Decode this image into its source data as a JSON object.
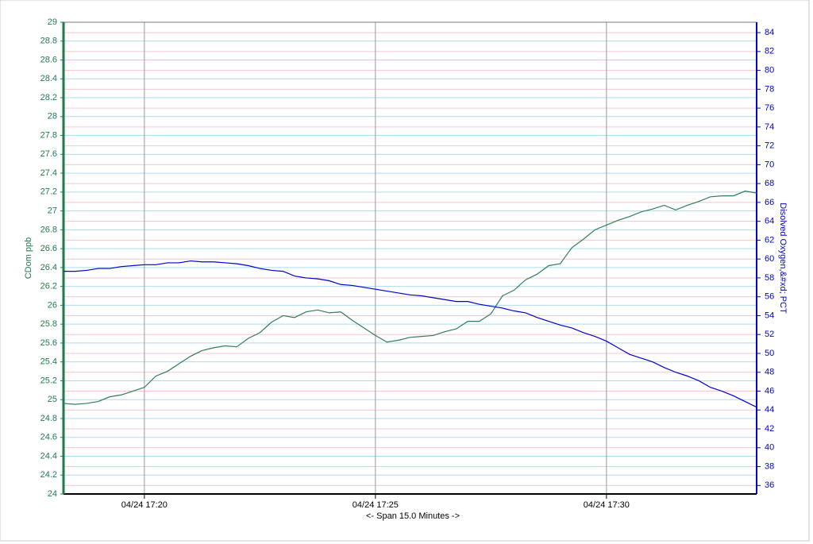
{
  "chart_data": {
    "type": "line",
    "x_label": "<- Span 15.0 Minutes ->",
    "y_label": "CDom ppb",
    "y2_label": "Disolved Oxygen,&#xd; PCT",
    "x": [
      18.25,
      18.5,
      18.75,
      19,
      19.25,
      19.5,
      19.75,
      20,
      20.25,
      20.5,
      20.75,
      21,
      21.25,
      21.5,
      21.75,
      22,
      22.25,
      22.5,
      22.75,
      23,
      23.25,
      23.5,
      23.75,
      24,
      24.25,
      24.5,
      24.75,
      25,
      25.25,
      25.5,
      25.75,
      26,
      26.25,
      26.5,
      26.75,
      27,
      27.25,
      27.5,
      27.75,
      28,
      28.25,
      28.5,
      28.75,
      29,
      29.25,
      29.5,
      29.75,
      30,
      30.25,
      30.5,
      30.75,
      31,
      31.25,
      31.5,
      31.75,
      32,
      32.25,
      32.5,
      32.75,
      33,
      33.25
    ],
    "xlim": [
      18.25,
      33.25
    ],
    "xticks": [
      {
        "value": 20,
        "label": "04/24 17:20"
      },
      {
        "value": 25,
        "label": "04/24 17:25"
      },
      {
        "value": 30,
        "label": "04/24 17:30"
      }
    ],
    "ylim": [
      24,
      29
    ],
    "yticks": [
      24,
      24.2,
      24.4,
      24.6,
      24.8,
      25,
      25.2,
      25.4,
      25.6,
      25.8,
      26,
      26.2,
      26.4,
      26.6,
      26.8,
      27,
      27.2,
      27.4,
      27.6,
      27.8,
      28,
      28.2,
      28.4,
      28.6,
      28.8,
      29
    ],
    "y2lim": [
      35.1,
      85.1
    ],
    "y2ticks": [
      36,
      38,
      40,
      42,
      44,
      46,
      48,
      50,
      52,
      54,
      56,
      58,
      60,
      62,
      64,
      66,
      68,
      70,
      72,
      74,
      76,
      78,
      80,
      82,
      84
    ],
    "grid": true,
    "series": [
      {
        "name": "CDom",
        "color": "#2e7d57",
        "axis": "y",
        "values": [
          24.96,
          24.95,
          24.96,
          24.98,
          25.03,
          25.05,
          25.09,
          25.13,
          25.25,
          25.3,
          25.38,
          25.46,
          25.52,
          25.55,
          25.57,
          25.56,
          25.65,
          25.71,
          25.82,
          25.89,
          25.87,
          25.93,
          25.95,
          25.92,
          25.93,
          25.84,
          25.76,
          25.68,
          25.61,
          25.63,
          25.66,
          25.67,
          25.68,
          25.72,
          25.75,
          25.83,
          25.83,
          25.91,
          26.1,
          26.16,
          26.27,
          26.33,
          26.42,
          26.44,
          26.61,
          26.7,
          26.8,
          26.85,
          26.9,
          26.94,
          26.99,
          27.02,
          27.06,
          27.01,
          27.06,
          27.1,
          27.15,
          27.16,
          27.16,
          27.21,
          27.19
        ]
      },
      {
        "name": "Disolved Oxygen",
        "color": "#0000cc",
        "axis": "y2",
        "values": [
          58.7,
          58.7,
          58.8,
          59.0,
          59.0,
          59.2,
          59.3,
          59.4,
          59.4,
          59.6,
          59.6,
          59.8,
          59.7,
          59.7,
          59.6,
          59.5,
          59.3,
          59.0,
          58.8,
          58.7,
          58.2,
          58.0,
          57.9,
          57.7,
          57.3,
          57.2,
          57.0,
          56.8,
          56.6,
          56.4,
          56.2,
          56.1,
          55.9,
          55.7,
          55.5,
          55.5,
          55.2,
          55.0,
          54.8,
          54.5,
          54.3,
          53.8,
          53.4,
          53.0,
          52.7,
          52.2,
          51.8,
          51.3,
          50.6,
          49.9,
          49.5,
          49.1,
          48.5,
          48.0,
          47.6,
          47.1,
          46.4,
          46.0,
          45.5,
          44.9,
          44.3
        ]
      }
    ]
  }
}
